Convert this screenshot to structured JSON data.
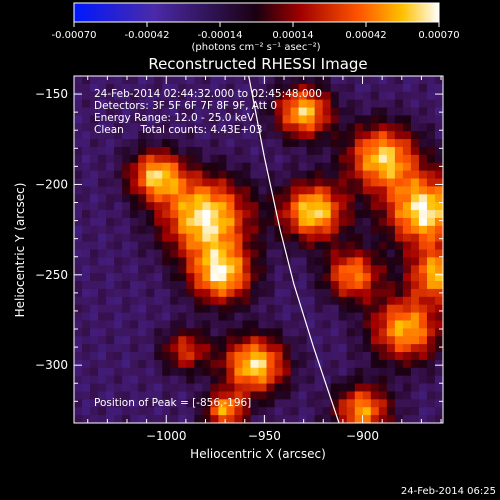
{
  "colorbar": {
    "ticks": [
      "-0.00070",
      "-0.00042",
      "-0.00014",
      "0.00014",
      "0.00042",
      "0.00070"
    ],
    "range": [
      -0.0007,
      0.0007
    ],
    "unit_label": "(photons cm⁻² s⁻¹ asec⁻²)"
  },
  "chart_data": {
    "type": "heatmap",
    "title": "Reconstructed RHESSI Image",
    "xlabel": "Heliocentric X (arcsec)",
    "ylabel": "Heliocentric Y (arcsec)",
    "xlim": [
      -1047,
      -859
    ],
    "ylim": [
      -332,
      -140
    ],
    "xticks": [
      -1000,
      -950,
      -900
    ],
    "yticks": [
      -150,
      -200,
      -250,
      -300
    ],
    "xtick_labels": [
      "−1000",
      "−950",
      "−900"
    ],
    "ytick_labels": [
      "−150",
      "−200",
      "−250",
      "−300"
    ],
    "annotations": [
      "24-Feb-2014 02:44:32.000 to 02:45:48.000",
      "Detectors: 3F 5F 6F 7F 8F 9F, Att 0",
      "Energy Range: 12.0 - 25.0 keV",
      "Clean     Total counts: 4.43E+03"
    ],
    "peak_text": "Position of Peak = [-856,-196]",
    "peak": [
      -856,
      -196
    ],
    "limb_curve": [
      [
        -958,
        -140
      ],
      [
        -950,
        -185
      ],
      [
        -942,
        -225
      ],
      [
        -935,
        -255
      ],
      [
        -925,
        -290
      ],
      [
        -912,
        -332
      ]
    ],
    "blobs": [
      {
        "x": -980,
        "y": -218,
        "amp": 1.0,
        "r": 22
      },
      {
        "x": -972,
        "y": -250,
        "amp": 0.9,
        "r": 16
      },
      {
        "x": -1005,
        "y": -195,
        "amp": 0.85,
        "r": 14
      },
      {
        "x": -955,
        "y": -300,
        "amp": 0.95,
        "r": 16
      },
      {
        "x": -970,
        "y": -325,
        "amp": 0.8,
        "r": 10
      },
      {
        "x": -930,
        "y": -160,
        "amp": 0.9,
        "r": 14
      },
      {
        "x": -925,
        "y": -215,
        "amp": 0.95,
        "r": 16
      },
      {
        "x": -905,
        "y": -250,
        "amp": 0.75,
        "r": 14
      },
      {
        "x": -890,
        "y": -185,
        "amp": 0.9,
        "r": 18
      },
      {
        "x": -868,
        "y": -215,
        "amp": 1.0,
        "r": 20
      },
      {
        "x": -878,
        "y": -280,
        "amp": 0.85,
        "r": 18
      },
      {
        "x": -862,
        "y": -250,
        "amp": 0.8,
        "r": 14
      },
      {
        "x": -900,
        "y": -325,
        "amp": 0.8,
        "r": 14
      },
      {
        "x": -990,
        "y": -292,
        "amp": 0.55,
        "r": 12
      }
    ]
  },
  "footer": {
    "timestamp": "24-Feb-2014 06:25"
  }
}
